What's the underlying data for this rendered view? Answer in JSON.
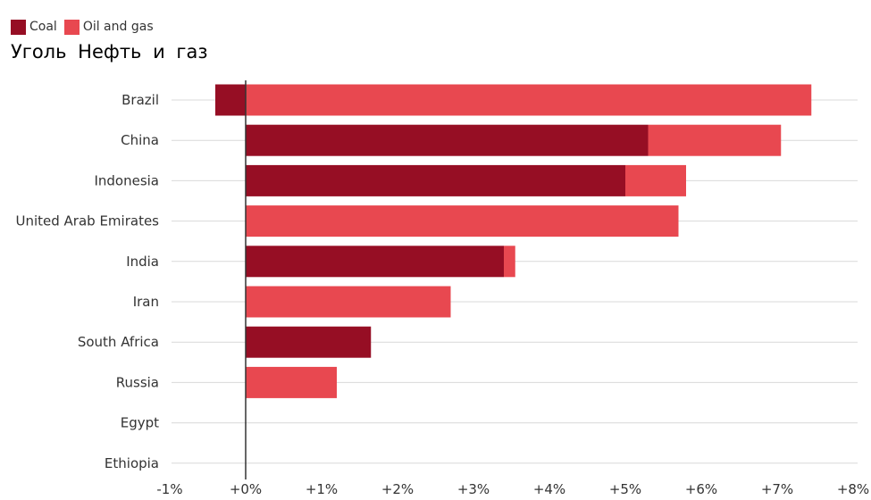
{
  "legend": {
    "coal_label": "Coal",
    "oil_gas_label": "Oil and gas",
    "subtitle": "Уголь  Нефть и газ"
  },
  "colors": {
    "coal": "#960e24",
    "oil_gas": "#e84850",
    "gridline": "#d9d9d9",
    "zero_line": "#333333"
  },
  "chart_data": {
    "type": "bar",
    "orientation": "horizontal",
    "stacked": true,
    "categories": [
      "Brazil",
      "China",
      "Indonesia",
      "United Arab Emirates",
      "India",
      "Iran",
      "South Africa",
      "Russia",
      "Egypt",
      "Ethiopia"
    ],
    "series": [
      {
        "name": "Coal",
        "values": [
          -0.4,
          5.3,
          5.0,
          0.0,
          3.4,
          0.0,
          1.65,
          0.0,
          0.0,
          0.0
        ]
      },
      {
        "name": "Oil and gas",
        "values": [
          7.45,
          1.75,
          0.8,
          5.7,
          0.15,
          2.7,
          0.0,
          1.2,
          0.0,
          0.0
        ]
      }
    ],
    "xlim": [
      -1,
      8
    ],
    "xticks": [
      "-1%",
      "+0%",
      "+1%",
      "+2%",
      "+3%",
      "+4%",
      "+5%",
      "+6%",
      "+7%",
      "+8%"
    ],
    "grid": "horizontal",
    "legend_position": "top-left"
  }
}
